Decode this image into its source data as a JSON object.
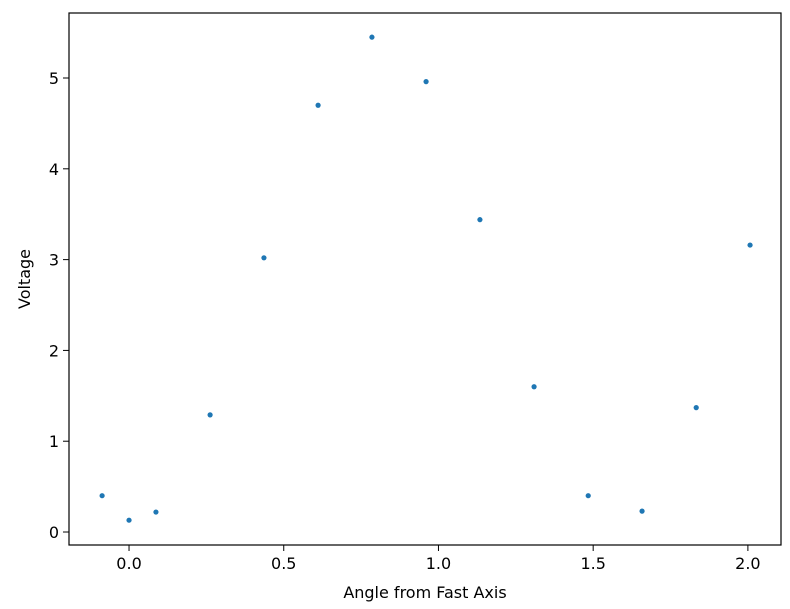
{
  "chart_data": {
    "type": "scatter",
    "x_label": "Angle from Fast Axis",
    "y_label": "Voltage",
    "color": "#1f77b4",
    "x": [
      -0.087,
      0,
      0.087,
      0.262,
      0.436,
      0.611,
      0.785,
      0.96,
      1.134,
      1.309,
      1.484,
      1.658,
      1.833,
      2.007
    ],
    "values": [
      0.4,
      0.13,
      0.22,
      1.29,
      3.02,
      4.7,
      5.45,
      4.96,
      3.44,
      1.6,
      0.4,
      0.23,
      1.37,
      3.16
    ],
    "xlim": [
      -0.194,
      2.107
    ],
    "ylim": [
      -0.143,
      5.716
    ],
    "xticks": [
      {
        "value": 0,
        "label": "0.0"
      },
      0.5,
      {
        "value": 1,
        "label": "1.0"
      },
      1.5,
      {
        "value": 2,
        "label": "2.0"
      }
    ],
    "yticks": [
      0,
      1,
      2,
      3,
      4,
      5
    ]
  }
}
